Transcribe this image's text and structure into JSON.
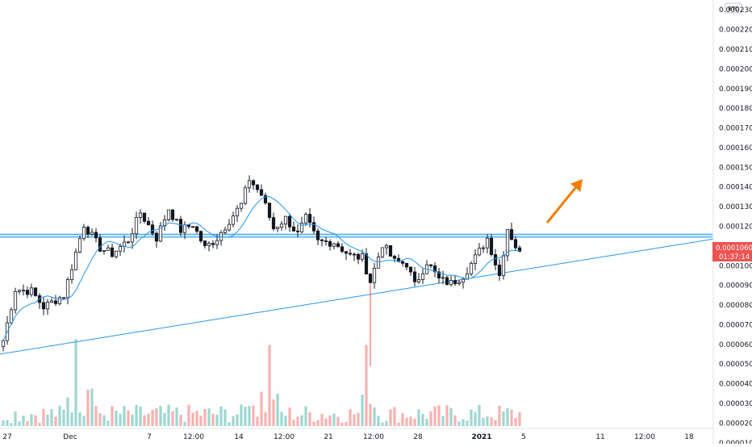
{
  "currency_label": "BTC",
  "price_badge": {
    "price": "0.0001060",
    "countdown": "01:37:14",
    "color": "#ef5350"
  },
  "colors": {
    "up": "#26a69a",
    "down": "#ef5350",
    "candle_body": "#131722",
    "ma_line": "#2196f3",
    "trendline": "#2196f3",
    "resistance_band": "#2196f3",
    "arrow": "#f57c00"
  },
  "chart_data": {
    "type": "candlestick",
    "y_axis_ticks": [
      "0.0002300",
      "0.0002200",
      "0.0002100",
      "0.0002000",
      "0.0001900",
      "0.0001800",
      "0.0001700",
      "0.0001600",
      "0.0001500",
      "0.0001400",
      "0.0001300",
      "0.0001200",
      "0.0001100",
      "0.0001000",
      "0.0000900",
      "0.0000800",
      "0.0000700",
      "0.0000600",
      "0.0000500",
      "0.0000400",
      "0.0000300",
      "0.0000200",
      "0.0000100"
    ],
    "x_axis_ticks": [
      {
        "label": "27",
        "bold": false
      },
      {
        "label": "Dec",
        "bold": false
      },
      {
        "label": "7",
        "bold": false
      },
      {
        "label": "12:00",
        "bold": false
      },
      {
        "label": "14",
        "bold": false
      },
      {
        "label": "12:00",
        "bold": false
      },
      {
        "label": "21",
        "bold": false
      },
      {
        "label": "12:00",
        "bold": false
      },
      {
        "label": "28",
        "bold": false
      },
      {
        "label": "2021",
        "bold": true
      },
      {
        "label": "5",
        "bold": false
      },
      {
        "label": "11",
        "bold": false
      },
      {
        "label": "12:00",
        "bold": false
      },
      {
        "label": "18",
        "bold": false
      }
    ],
    "ylim": [
      9.5e-06,
      0.000235
    ],
    "price_keypoints": [
      [
        0,
        6.2e-05
      ],
      [
        3,
        8.8e-05
      ],
      [
        7,
        8.7e-05
      ],
      [
        10,
        7.9e-05
      ],
      [
        15,
        8.5e-05
      ],
      [
        20,
        0.000121
      ],
      [
        24,
        0.000109
      ],
      [
        27,
        0.000106
      ],
      [
        31,
        0.000113
      ],
      [
        34,
        0.000127
      ],
      [
        38,
        0.000114
      ],
      [
        41,
        0.000129
      ],
      [
        44,
        0.000118
      ],
      [
        47,
        0.000121
      ],
      [
        50,
        0.000109
      ],
      [
        53,
        0.000114
      ],
      [
        56,
        0.000123
      ],
      [
        59,
        0.000131
      ],
      [
        61,
        0.000144
      ],
      [
        64,
        0.000136
      ],
      [
        67,
        0.000119
      ],
      [
        70,
        0.000124
      ],
      [
        73,
        0.000116
      ],
      [
        75,
        0.000124
      ],
      [
        78,
        0.000112
      ],
      [
        82,
        0.000112
      ],
      [
        86,
        0.000105
      ],
      [
        89,
        0.000104
      ],
      [
        91,
        9.2e-05
      ],
      [
        94,
        0.000111
      ],
      [
        97,
        0.000102
      ],
      [
        100,
        0.000101
      ],
      [
        102,
        9e-05
      ],
      [
        105,
        0.000102
      ],
      [
        108,
        9.3e-05
      ],
      [
        111,
        9.1e-05
      ],
      [
        114,
        9.5e-05
      ],
      [
        117,
        0.000104
      ],
      [
        120,
        0.000114
      ],
      [
        123,
        9.5e-05
      ],
      [
        125,
        0.000119
      ],
      [
        127,
        0.00011
      ],
      [
        128,
        0.000106
      ]
    ],
    "wick_spike": {
      "candle_index": 91,
      "low": 4.9e-05
    },
    "resistance_band": {
      "low": 0.0001145,
      "high": 0.000116
    },
    "trendline": {
      "start": {
        "candle_index": -1,
        "price": 5.5e-05
      },
      "end": {
        "candle_index": 188,
        "price": 0.0001175
      }
    },
    "volume_ylim": [
      0,
      7e-05
    ]
  }
}
